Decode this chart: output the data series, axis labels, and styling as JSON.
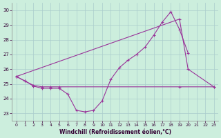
{
  "xlabel": "Windchill (Refroidissement éolien,°C)",
  "background_color": "#cceedd",
  "grid_color": "#aacccc",
  "line_color": "#993399",
  "series1_x": [
    0,
    1,
    2,
    3,
    4,
    5,
    6,
    7,
    8,
    9,
    10,
    11,
    12,
    13,
    14,
    15,
    16,
    17,
    18,
    19,
    20
  ],
  "series1_y": [
    25.5,
    25.2,
    24.85,
    24.7,
    24.7,
    24.7,
    24.3,
    23.2,
    23.1,
    23.2,
    23.85,
    25.3,
    26.1,
    26.6,
    27.0,
    27.5,
    28.3,
    29.2,
    29.9,
    28.7,
    27.1
  ],
  "series2_x": [
    0,
    19,
    20,
    23
  ],
  "series2_y": [
    25.5,
    29.4,
    26.0,
    24.8
  ],
  "series3_x": [
    0,
    1,
    2,
    3,
    4,
    5,
    19,
    23
  ],
  "series3_y": [
    25.5,
    25.2,
    24.9,
    24.8,
    24.8,
    24.8,
    24.8,
    24.8
  ],
  "ylim": [
    22.5,
    30.5
  ],
  "yticks": [
    23,
    24,
    25,
    26,
    27,
    28,
    29,
    30
  ],
  "xticks": [
    0,
    1,
    2,
    3,
    4,
    5,
    6,
    7,
    8,
    9,
    10,
    11,
    12,
    13,
    14,
    15,
    16,
    17,
    18,
    19,
    20,
    21,
    22,
    23
  ]
}
